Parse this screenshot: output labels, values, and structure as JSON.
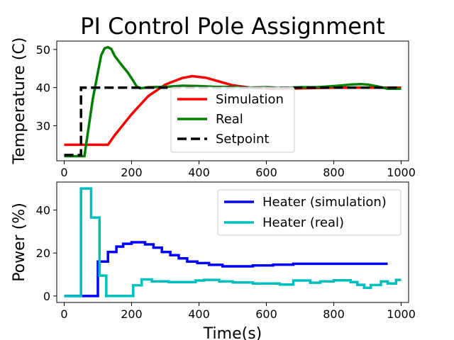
{
  "chart_data": [
    {
      "type": "line",
      "title": "PI Control Pole Assignment",
      "xlabel": "",
      "ylabel": "Temperature (C)",
      "xlim": [
        -22,
        1022
      ],
      "ylim": [
        20.8,
        52.2
      ],
      "xticks": [
        0,
        200,
        400,
        600,
        800,
        1000
      ],
      "yticks": [
        30,
        40,
        50
      ],
      "legend": "center",
      "series": [
        {
          "name": "Simulation",
          "color": "#ff0000",
          "dash": "solid",
          "step": false,
          "points": [
            [
              0,
              25
            ],
            [
              130,
              25
            ],
            [
              150,
              27.5
            ],
            [
              200,
              33
            ],
            [
              250,
              37.8
            ],
            [
              300,
              40.8
            ],
            [
              350,
              42.5
            ],
            [
              380,
              43
            ],
            [
              420,
              42.6
            ],
            [
              460,
              41.6
            ],
            [
              500,
              40.6
            ],
            [
              560,
              39.9
            ],
            [
              620,
              39.7
            ],
            [
              700,
              39.8
            ],
            [
              800,
              40.0
            ],
            [
              1000,
              40
            ]
          ]
        },
        {
          "name": "Real",
          "color": "#008000",
          "dash": "solid",
          "step": false,
          "points": [
            [
              0,
              22
            ],
            [
              55,
              22
            ],
            [
              60,
              22
            ],
            [
              70,
              28
            ],
            [
              85,
              37
            ],
            [
              100,
              44
            ],
            [
              110,
              48.5
            ],
            [
              120,
              50.3
            ],
            [
              130,
              50.6
            ],
            [
              140,
              50.1
            ],
            [
              150,
              48.3
            ],
            [
              170,
              46
            ],
            [
              190,
              43.8
            ],
            [
              205,
              41.8
            ],
            [
              215,
              40.3
            ],
            [
              225,
              39.8
            ],
            [
              250,
              40.1
            ],
            [
              300,
              40.2
            ],
            [
              350,
              40.5
            ],
            [
              400,
              40.4
            ],
            [
              450,
              40.2
            ],
            [
              500,
              40.2
            ],
            [
              550,
              40
            ],
            [
              600,
              40.1
            ],
            [
              650,
              39.9
            ],
            [
              700,
              40.1
            ],
            [
              750,
              40.1
            ],
            [
              800,
              40.4
            ],
            [
              830,
              40.6
            ],
            [
              850,
              40.8
            ],
            [
              880,
              40.9
            ],
            [
              900,
              40.8
            ],
            [
              930,
              40.3
            ],
            [
              960,
              39.7
            ],
            [
              1000,
              39.7
            ]
          ]
        },
        {
          "name": "Setpoint",
          "color": "#000000",
          "dash": "dashed",
          "step": false,
          "points": [
            [
              0,
              22.3
            ],
            [
              50,
              22.3
            ],
            [
              50,
              40
            ],
            [
              1000,
              40
            ]
          ]
        }
      ]
    },
    {
      "type": "line",
      "title": "",
      "xlabel": "Time(s)",
      "ylabel": "Power (%)",
      "xlim": [
        -22,
        1022
      ],
      "ylim": [
        -3,
        53
      ],
      "xticks": [
        0,
        200,
        400,
        600,
        800,
        1000
      ],
      "yticks": [
        0,
        20,
        40
      ],
      "legend": "top-right",
      "series": [
        {
          "name": "Heater (simulation)",
          "color": "#0000ff",
          "dash": "solid",
          "step": true,
          "points": [
            [
              0,
              0
            ],
            [
              100,
              0
            ],
            [
              100,
              16
            ],
            [
              130,
              16
            ],
            [
              130,
              20.5
            ],
            [
              155,
              20.5
            ],
            [
              155,
              23
            ],
            [
              175,
              23
            ],
            [
              175,
              24.3
            ],
            [
              200,
              24.3
            ],
            [
              200,
              25
            ],
            [
              240,
              25
            ],
            [
              240,
              24
            ],
            [
              265,
              24
            ],
            [
              265,
              22.5
            ],
            [
              290,
              22.5
            ],
            [
              290,
              20.5
            ],
            [
              315,
              20.5
            ],
            [
              315,
              19
            ],
            [
              340,
              19
            ],
            [
              340,
              17.5
            ],
            [
              365,
              17.5
            ],
            [
              365,
              16
            ],
            [
              395,
              16
            ],
            [
              395,
              15.3
            ],
            [
              430,
              15.3
            ],
            [
              430,
              14.5
            ],
            [
              470,
              14.5
            ],
            [
              470,
              13.8
            ],
            [
              560,
              13.8
            ],
            [
              560,
              14.2
            ],
            [
              620,
              14.2
            ],
            [
              620,
              14.6
            ],
            [
              680,
              14.6
            ],
            [
              680,
              15.0
            ],
            [
              960,
              15.0
            ]
          ]
        },
        {
          "name": "Heater (real)",
          "color": "#00bfbf",
          "dash": "solid",
          "step": true,
          "points": [
            [
              0,
              0
            ],
            [
              50,
              0
            ],
            [
              50,
              50
            ],
            [
              80,
              50
            ],
            [
              80,
              36.5
            ],
            [
              105,
              36.5
            ],
            [
              105,
              9.5
            ],
            [
              125,
              9.5
            ],
            [
              125,
              0
            ],
            [
              205,
              0
            ],
            [
              205,
              5
            ],
            [
              230,
              5
            ],
            [
              230,
              7.7
            ],
            [
              260,
              7.7
            ],
            [
              260,
              6.8
            ],
            [
              310,
              6.8
            ],
            [
              310,
              6.5
            ],
            [
              390,
              6.5
            ],
            [
              390,
              7.2
            ],
            [
              415,
              7.2
            ],
            [
              415,
              7.5
            ],
            [
              460,
              7.5
            ],
            [
              460,
              6.8
            ],
            [
              500,
              6.8
            ],
            [
              500,
              6.3
            ],
            [
              560,
              6.3
            ],
            [
              560,
              5.8
            ],
            [
              640,
              5.8
            ],
            [
              640,
              5.3
            ],
            [
              680,
              5.3
            ],
            [
              680,
              7.2
            ],
            [
              730,
              7.2
            ],
            [
              730,
              6.2
            ],
            [
              760,
              6.2
            ],
            [
              760,
              6.8
            ],
            [
              800,
              6.8
            ],
            [
              800,
              7.3
            ],
            [
              850,
              7.3
            ],
            [
              850,
              6.5
            ],
            [
              870,
              6.5
            ],
            [
              870,
              5.2
            ],
            [
              890,
              5.2
            ],
            [
              890,
              3.8
            ],
            [
              910,
              3.8
            ],
            [
              910,
              5.1
            ],
            [
              940,
              5.1
            ],
            [
              940,
              6.8
            ],
            [
              960,
              6.8
            ],
            [
              960,
              5.8
            ],
            [
              985,
              5.8
            ],
            [
              985,
              7.5
            ],
            [
              1000,
              7.5
            ]
          ]
        }
      ]
    }
  ]
}
